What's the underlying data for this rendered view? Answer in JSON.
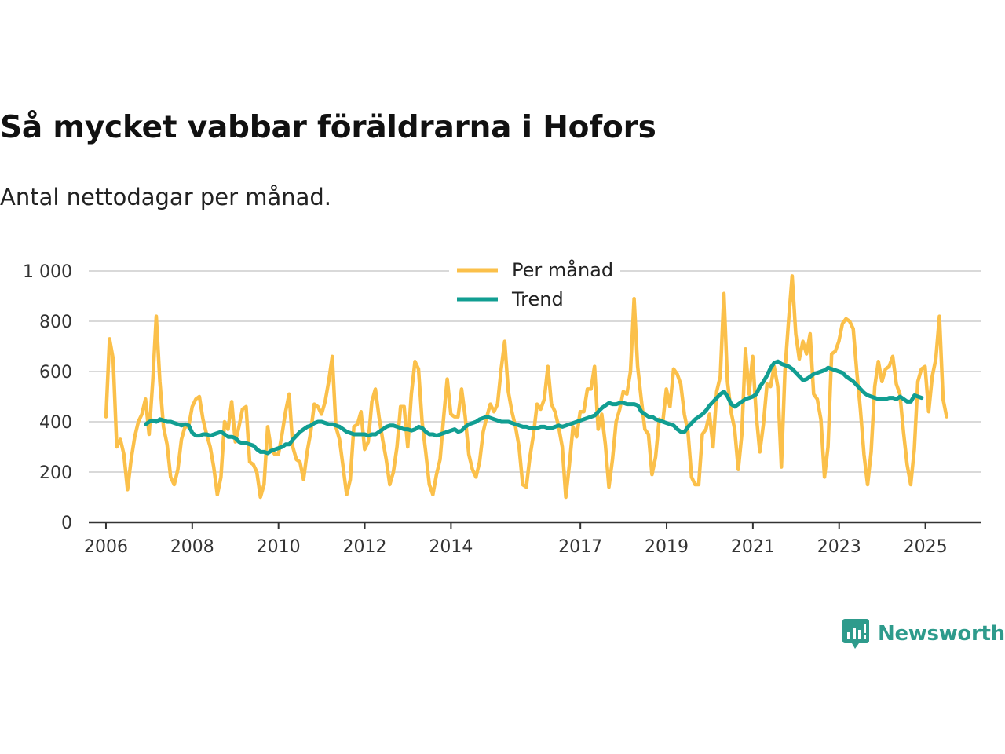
{
  "title": "Så mycket vabbar föräldrarna i Hofors",
  "subtitle": "Antal nettodagar per månad.",
  "brand": "Newsworthy",
  "colors": {
    "monthly": "#fbc04a",
    "trend": "#119e92",
    "grid": "#d9d9d9",
    "axis": "#333333",
    "brand": "#2e9b8c"
  },
  "chart_data": {
    "type": "line",
    "title": "Så mycket vabbar föräldrarna i Hofors",
    "subtitle": "Antal nettodagar per månad.",
    "xlabel": "",
    "ylabel": "",
    "ylim": [
      0,
      1000
    ],
    "xlim": [
      2005.6,
      2026.3
    ],
    "yticks": [
      0,
      200,
      400,
      600,
      800,
      1000
    ],
    "ytick_labels": [
      "0",
      "200",
      "400",
      "600",
      "800",
      "1 000"
    ],
    "xticks": [
      2006,
      2008,
      2010,
      2012,
      2014,
      2017,
      2019,
      2021,
      2023,
      2025
    ],
    "xtick_labels": [
      "2006",
      "2008",
      "2010",
      "2012",
      "2014",
      "2017",
      "2019",
      "2021",
      "2023",
      "2025"
    ],
    "legend": "top-center",
    "grid": true,
    "series": [
      {
        "name": "Per månad",
        "x_start": 2006.0,
        "x_step": 0.0833,
        "values": [
          420,
          730,
          650,
          300,
          330,
          270,
          130,
          250,
          340,
          400,
          430,
          490,
          350,
          560,
          820,
          560,
          380,
          310,
          180,
          150,
          210,
          330,
          380,
          380,
          460,
          490,
          500,
          410,
          350,
          300,
          220,
          110,
          180,
          400,
          370,
          480,
          320,
          380,
          450,
          460,
          240,
          230,
          200,
          100,
          150,
          380,
          290,
          270,
          270,
          350,
          440,
          510,
          300,
          250,
          240,
          170,
          280,
          360,
          470,
          460,
          430,
          480,
          560,
          660,
          380,
          330,
          220,
          110,
          170,
          380,
          390,
          440,
          290,
          320,
          480,
          530,
          420,
          330,
          250,
          150,
          200,
          300,
          460,
          460,
          300,
          510,
          640,
          610,
          400,
          280,
          150,
          110,
          190,
          250,
          420,
          570,
          430,
          420,
          420,
          530,
          420,
          270,
          210,
          180,
          240,
          360,
          420,
          470,
          440,
          470,
          610,
          720,
          520,
          440,
          380,
          300,
          150,
          140,
          260,
          350,
          470,
          450,
          490,
          620,
          470,
          440,
          380,
          300,
          100,
          230,
          380,
          340,
          440,
          440,
          530,
          530,
          620,
          370,
          430,
          310,
          140,
          250,
          400,
          450,
          520,
          510,
          600,
          890,
          620,
          490,
          370,
          350,
          190,
          260,
          410,
          400,
          530,
          460,
          610,
          590,
          550,
          430,
          360,
          180,
          150,
          150,
          350,
          370,
          430,
          300,
          520,
          580,
          910,
          560,
          440,
          370,
          210,
          350,
          690,
          510,
          660,
          430,
          280,
          390,
          550,
          540,
          620,
          540,
          220,
          600,
          800,
          980,
          750,
          650,
          720,
          670,
          750,
          510,
          490,
          410,
          180,
          300,
          670,
          680,
          720,
          790,
          810,
          800,
          770,
          600,
          450,
          270,
          150,
          280,
          540,
          640,
          560,
          610,
          620,
          660,
          550,
          510,
          360,
          230,
          150,
          290,
          560,
          610,
          620,
          440,
          580,
          650,
          820,
          490,
          420
        ]
      },
      {
        "name": "Trend",
        "x_start": 2006.92,
        "x_step": 0.0833,
        "values": [
          390,
          400,
          405,
          400,
          410,
          405,
          400,
          400,
          395,
          390,
          385,
          390,
          385,
          355,
          345,
          345,
          350,
          350,
          345,
          350,
          355,
          360,
          350,
          340,
          340,
          335,
          320,
          315,
          315,
          310,
          305,
          290,
          280,
          280,
          275,
          285,
          290,
          295,
          300,
          310,
          310,
          330,
          345,
          360,
          370,
          380,
          385,
          395,
          400,
          400,
          395,
          390,
          390,
          385,
          380,
          370,
          360,
          355,
          350,
          350,
          350,
          350,
          345,
          350,
          350,
          360,
          370,
          380,
          385,
          385,
          380,
          375,
          370,
          370,
          365,
          370,
          380,
          375,
          360,
          350,
          350,
          345,
          350,
          355,
          360,
          365,
          370,
          360,
          365,
          380,
          390,
          395,
          400,
          410,
          415,
          420,
          415,
          410,
          405,
          400,
          400,
          400,
          395,
          390,
          385,
          380,
          380,
          375,
          375,
          375,
          380,
          380,
          375,
          375,
          380,
          385,
          380,
          385,
          390,
          395,
          400,
          405,
          410,
          415,
          420,
          425,
          440,
          455,
          465,
          475,
          470,
          470,
          475,
          475,
          470,
          470,
          470,
          465,
          440,
          430,
          420,
          420,
          410,
          405,
          400,
          395,
          390,
          385,
          370,
          360,
          360,
          380,
          395,
          410,
          420,
          430,
          445,
          465,
          480,
          495,
          510,
          520,
          500,
          470,
          460,
          470,
          480,
          490,
          495,
          500,
          510,
          540,
          560,
          585,
          615,
          635,
          640,
          630,
          625,
          620,
          610,
          595,
          580,
          565,
          570,
          580,
          590,
          595,
          600,
          605,
          615,
          610,
          605,
          600,
          595,
          580,
          570,
          560,
          545,
          530,
          515,
          505,
          500,
          495,
          490,
          490,
          490,
          495,
          495,
          490,
          500,
          490,
          480,
          480,
          505,
          500,
          495
        ]
      }
    ]
  }
}
